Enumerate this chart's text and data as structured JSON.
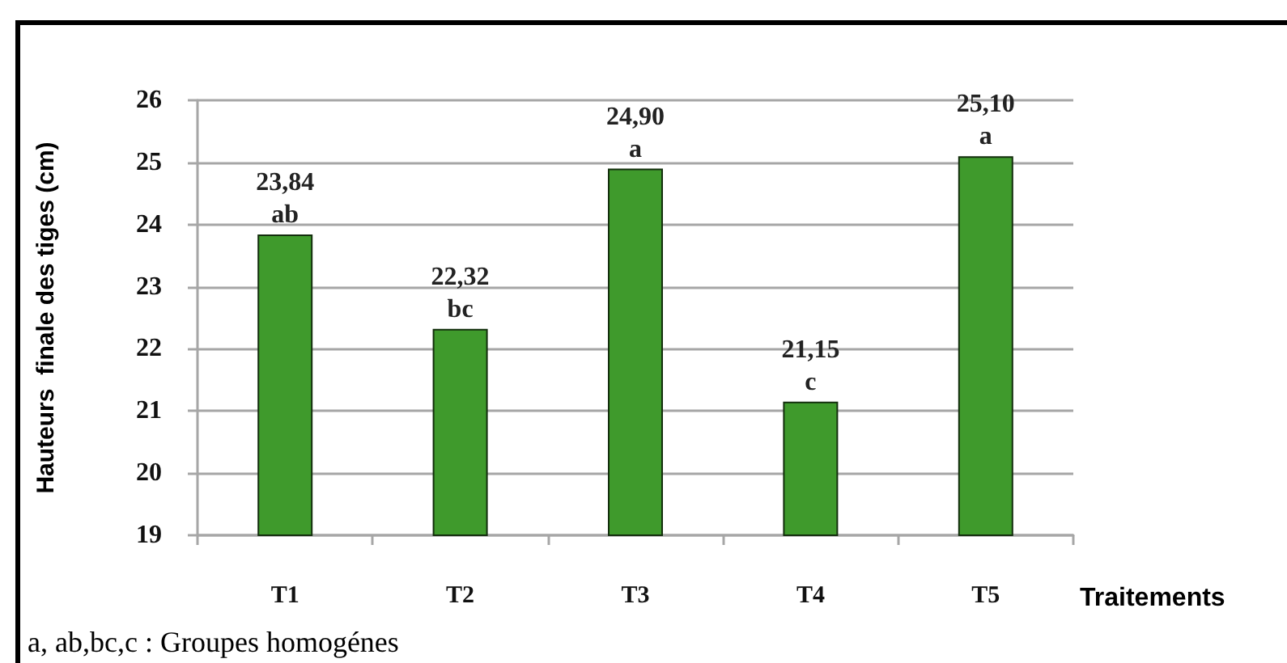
{
  "chart_data": {
    "type": "bar",
    "categories": [
      "T1",
      "T2",
      "T3",
      "T4",
      "T5"
    ],
    "values": [
      23.84,
      22.32,
      24.9,
      21.15,
      25.1
    ],
    "color": "#3f9a2c",
    "value_labels": [
      "23,84",
      "22,32",
      "24,90",
      "21,15",
      "25,10"
    ],
    "xlabel": "Traitements",
    "ylabel": "Hauteurs  finale des tiges (cm)",
    "ylim": [
      19,
      26
    ],
    "yticks": [
      19,
      20,
      21,
      22,
      23,
      24,
      25,
      26
    ],
    "grid": "y",
    "annotations": [
      {
        "text": "ab",
        "x": "T1",
        "y": 23.84
      },
      {
        "text": "bc",
        "x": "T2",
        "y": 22.32
      },
      {
        "text": "a",
        "x": "T3",
        "y": 24.9
      },
      {
        "text": "c",
        "x": "T4",
        "y": 21.15
      },
      {
        "text": "a",
        "x": "T5",
        "y": 25.1
      },
      "a, ab,bc,c : Groupes homogénes"
    ]
  }
}
